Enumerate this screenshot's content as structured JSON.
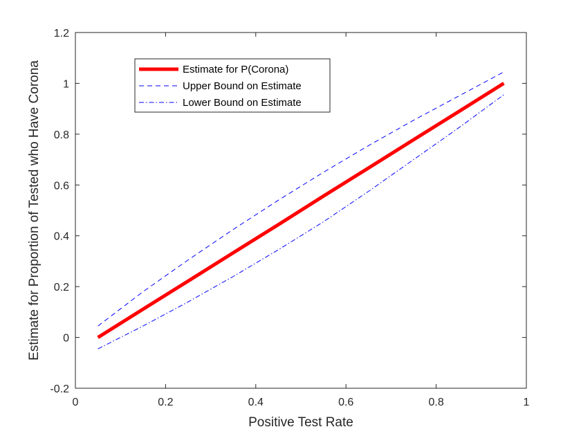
{
  "chart_data": {
    "type": "line",
    "xlabel": "Positive Test Rate",
    "ylabel": "Estimate for Proportion of Tested who Have Corona",
    "xlim": [
      0,
      1
    ],
    "ylim": [
      -0.2,
      1.2
    ],
    "xticks": [
      0,
      0.2,
      0.4,
      0.6,
      0.8,
      1
    ],
    "yticks": [
      -0.2,
      0,
      0.2,
      0.4,
      0.6,
      0.8,
      1,
      1.2
    ],
    "xtick_labels": [
      "0",
      "0.2",
      "0.4",
      "0.6",
      "0.8",
      "1"
    ],
    "ytick_labels": [
      "-0.2",
      "0",
      "0.2",
      "0.4",
      "0.6",
      "0.8",
      "1",
      "1.2"
    ],
    "grid": false,
    "legend_position": "top-left",
    "series": [
      {
        "name": "Estimate for P(Corona)",
        "color": "#ff0000",
        "style": "solid",
        "x": [
          0.05,
          0.15,
          0.25,
          0.35,
          0.45,
          0.55,
          0.65,
          0.75,
          0.85,
          0.95
        ],
        "y": [
          0.0,
          0.111,
          0.222,
          0.333,
          0.444,
          0.556,
          0.667,
          0.778,
          0.889,
          1.0
        ]
      },
      {
        "name": "Upper Bound on Estimate",
        "color": "#0000ff",
        "style": "dashed",
        "x": [
          0.05,
          0.15,
          0.25,
          0.35,
          0.45,
          0.55,
          0.65,
          0.75,
          0.85,
          0.95
        ],
        "y": [
          0.045,
          0.18,
          0.305,
          0.425,
          0.54,
          0.65,
          0.755,
          0.855,
          0.95,
          1.045
        ]
      },
      {
        "name": "Lower Bound on Estimate",
        "color": "#0000ff",
        "style": "dashdot",
        "x": [
          0.05,
          0.15,
          0.25,
          0.35,
          0.45,
          0.55,
          0.65,
          0.75,
          0.85,
          0.95
        ],
        "y": [
          -0.045,
          0.045,
          0.14,
          0.24,
          0.345,
          0.455,
          0.575,
          0.7,
          0.825,
          0.955
        ]
      }
    ]
  }
}
